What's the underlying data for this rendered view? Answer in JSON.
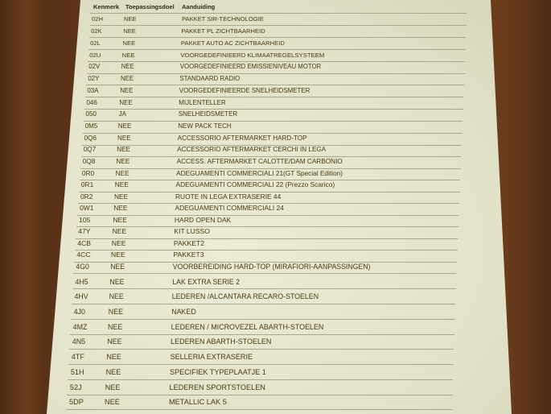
{
  "table": {
    "headers": {
      "code": "Kenmerk",
      "applicable": "Toepassingsdoel",
      "description": "Aanduiding"
    },
    "rows": [
      {
        "code": "02H",
        "applicable": "NEE",
        "description": "PAKKET SIR-TECHNOLOGIE"
      },
      {
        "code": "02K",
        "applicable": "NEE",
        "description": "PAKKET PL ZICHTBAARHEID"
      },
      {
        "code": "02L",
        "applicable": "NEE",
        "description": "PAKKET AUTO AC ZICHTBAARHEID"
      },
      {
        "code": "02U",
        "applicable": "NEE",
        "description": "VOORGEDEFINIEERD KLIMAATREGELSYSTEEM"
      },
      {
        "code": "02V",
        "applicable": "NEE",
        "description": "VOORGEDEFINIEERD EMISSIENIVEAU MOTOR"
      },
      {
        "code": "02Y",
        "applicable": "NEE",
        "description": "STANDAARD RADIO"
      },
      {
        "code": "03A",
        "applicable": "NEE",
        "description": "VOORGEDEFINIEERDE SNELHEIDSMETER"
      },
      {
        "code": "046",
        "applicable": "NEE",
        "description": "MIJLENTELLER"
      },
      {
        "code": "050",
        "applicable": "JA",
        "description": "SNELHEIDSMETER"
      },
      {
        "code": "0M5",
        "applicable": "NEE",
        "description": "NEW PACK TECH"
      },
      {
        "code": "0Q6",
        "applicable": "NEE",
        "description": "ACCESSORIO AFTERMARKET HARD-TOP"
      },
      {
        "code": "0Q7",
        "applicable": "NEE",
        "description": "ACCESSORIO AFTERMARKET CERCHI IN LEGA"
      },
      {
        "code": "0Q8",
        "applicable": "NEE",
        "description": "ACCESS. AFTERMARKET CALOTTE/DAM CARBONIO"
      },
      {
        "code": "0R0",
        "applicable": "NEE",
        "description": "ADEGUAMENTI COMMERCIALI 21(GT Special Edition)"
      },
      {
        "code": "0R1",
        "applicable": "NEE",
        "description": "ADEGUAMENTI COMMERCIALI 22 (Prezzo Scarico)"
      },
      {
        "code": "0R2",
        "applicable": "NEE",
        "description": "RUOTE IN LEGA EXTRASERIE 44"
      },
      {
        "code": "0W1",
        "applicable": "NEE",
        "description": "ADEGUAMENTI COMMERCIALI 24"
      },
      {
        "code": "105",
        "applicable": "NEE",
        "description": "HARD OPEN DAK"
      },
      {
        "code": "47Y",
        "applicable": "NEE",
        "description": "KIT LUSSO"
      },
      {
        "code": "4CB",
        "applicable": "NEE",
        "description": "PAKKET2"
      },
      {
        "code": "4CC",
        "applicable": "NEE",
        "description": "PAKKET3"
      },
      {
        "code": "4G0",
        "applicable": "NEE",
        "description": "VOORBEREIDING HARD-TOP (MIRAFIORI-AANPASSINGEN)"
      },
      {
        "code": "4H5",
        "applicable": "NEE",
        "description": "LAK EXTRA SERIE 2"
      },
      {
        "code": "4HV",
        "applicable": "NEE",
        "description": "LEDEREN /ALCANTARA RECARO-STOELEN"
      },
      {
        "code": "4J0",
        "applicable": "NEE",
        "description": "NAKED"
      },
      {
        "code": "4MZ",
        "applicable": "NEE",
        "description": "LEDEREN / MICROVEZEL ABARTH-STOELEN"
      },
      {
        "code": "4N5",
        "applicable": "NEE",
        "description": "LEDEREN ABARTH-STOELEN"
      },
      {
        "code": "4TF",
        "applicable": "NEE",
        "description": "SELLERIA EXTRASERIE"
      },
      {
        "code": "51H",
        "applicable": "NEE",
        "description": "SPECIFIEK TYPEPLAATJE 1"
      },
      {
        "code": "52J",
        "applicable": "NEE",
        "description": "LEDEREN SPORTSTOELEN"
      },
      {
        "code": "5DP",
        "applicable": "NEE",
        "description": "METALLIC LAK 5"
      }
    ]
  }
}
